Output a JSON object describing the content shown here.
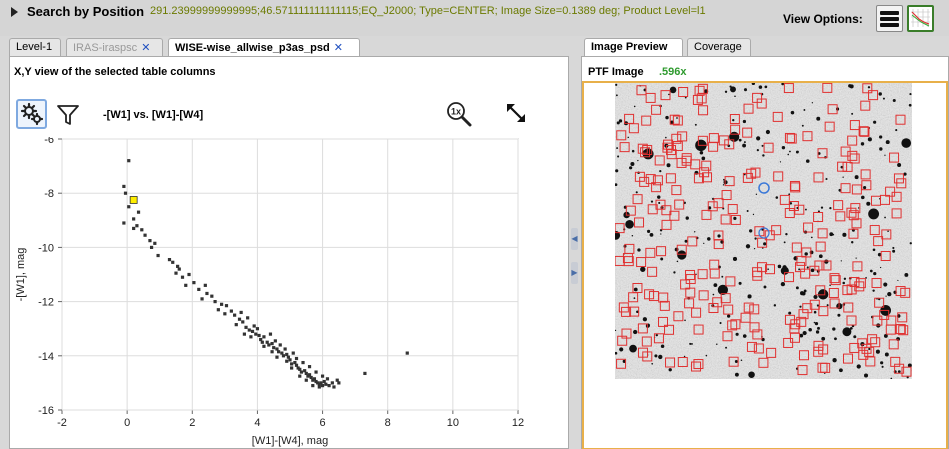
{
  "header": {
    "title": "Search by Position",
    "description": "291.23999999999995;46.571111111111115;EQ_J2000; Type=CENTER; Image Size=0.1389 deg; Product Level=l1",
    "view_options_label": "View Options:"
  },
  "left_tabs": [
    {
      "label": "Level-1",
      "closable": false
    },
    {
      "label": "IRAS-iraspsc",
      "closable": true
    },
    {
      "label": "WISE-wise_allwise_p3as_psd",
      "closable": true
    }
  ],
  "close_glyph": "✕",
  "left_panel": {
    "title": "X,Y view of the selected table columns",
    "plot_title": "-[W1] vs. [W1]-[W4]"
  },
  "right_tabs": [
    {
      "label": "Image Preview"
    },
    {
      "label": "Coverage"
    }
  ],
  "right_panel": {
    "label": "PTF Image",
    "zoom": ".596x"
  },
  "icons": {
    "gear": "gear-icon",
    "filter": "filter-icon",
    "zoom": "zoom-1x-icon",
    "expand": "expand-icon",
    "menu": "menu-icon",
    "grid": "grid-view-icon"
  },
  "colors": {
    "accent_green": "#6b7a00",
    "selected_point": "#ffee00",
    "catalog_marker": "#e03030",
    "image_border": "#e8b04a"
  },
  "chart_data": {
    "type": "scatter",
    "xlabel": "[W1]-[W4], mag",
    "ylabel": "-[W1], mag",
    "xlim": [
      -2,
      12
    ],
    "ylim": [
      -16,
      -6
    ],
    "xticks": [
      -2,
      0,
      2,
      4,
      6,
      8,
      10,
      12
    ],
    "yticks": [
      -6,
      -8,
      -10,
      -12,
      -14,
      -16
    ],
    "grid": true,
    "selected_point": {
      "x": 0.2,
      "y": -8.25
    },
    "points": [
      [
        0.05,
        -6.8
      ],
      [
        -0.1,
        -7.75
      ],
      [
        -0.05,
        -8.0
      ],
      [
        0.15,
        -8.3
      ],
      [
        0.05,
        -8.5
      ],
      [
        0.35,
        -8.7
      ],
      [
        0.2,
        -8.95
      ],
      [
        -0.1,
        -9.1
      ],
      [
        0.3,
        -9.2
      ],
      [
        0.45,
        -9.35
      ],
      [
        0.55,
        -9.55
      ],
      [
        0.7,
        -9.75
      ],
      [
        0.85,
        -9.85
      ],
      [
        0.2,
        -9.3
      ],
      [
        0.75,
        -10.0
      ],
      [
        0.95,
        -10.3
      ],
      [
        1.3,
        -10.45
      ],
      [
        1.4,
        -10.55
      ],
      [
        1.55,
        -10.7
      ],
      [
        1.5,
        -10.95
      ],
      [
        1.7,
        -11.1
      ],
      [
        1.9,
        -11.0
      ],
      [
        2.05,
        -11.3
      ],
      [
        2.2,
        -11.55
      ],
      [
        2.45,
        -11.7
      ],
      [
        2.6,
        -11.8
      ],
      [
        2.7,
        -12.0
      ],
      [
        2.9,
        -12.1
      ],
      [
        3.05,
        -12.15
      ],
      [
        3.2,
        -12.35
      ],
      [
        3.3,
        -12.5
      ],
      [
        3.45,
        -12.65
      ],
      [
        3.55,
        -12.75
      ],
      [
        3.35,
        -12.85
      ],
      [
        3.65,
        -12.95
      ],
      [
        3.75,
        -13.05
      ],
      [
        3.85,
        -13.1
      ],
      [
        3.95,
        -13.2
      ],
      [
        4.05,
        -13.25
      ],
      [
        4.1,
        -13.4
      ],
      [
        4.2,
        -13.3
      ],
      [
        4.3,
        -13.5
      ],
      [
        4.35,
        -13.6
      ],
      [
        4.45,
        -13.55
      ],
      [
        4.5,
        -13.7
      ],
      [
        4.6,
        -13.75
      ],
      [
        4.65,
        -13.85
      ],
      [
        4.75,
        -13.9
      ],
      [
        4.8,
        -14.0
      ],
      [
        4.9,
        -13.95
      ],
      [
        4.95,
        -14.05
      ],
      [
        5.0,
        -14.15
      ],
      [
        5.05,
        -14.3
      ],
      [
        5.15,
        -14.25
      ],
      [
        5.2,
        -14.35
      ],
      [
        5.25,
        -14.45
      ],
      [
        5.3,
        -14.5
      ],
      [
        5.35,
        -14.6
      ],
      [
        5.45,
        -14.55
      ],
      [
        5.5,
        -14.65
      ],
      [
        5.55,
        -14.75
      ],
      [
        5.6,
        -14.7
      ],
      [
        5.65,
        -14.8
      ],
      [
        5.7,
        -14.9
      ],
      [
        5.75,
        -14.85
      ],
      [
        5.8,
        -14.95
      ],
      [
        5.85,
        -15.0
      ],
      [
        5.9,
        -15.05
      ],
      [
        5.95,
        -15.0
      ],
      [
        6.0,
        -15.1
      ],
      [
        6.05,
        -14.95
      ],
      [
        6.1,
        -15.05
      ],
      [
        6.2,
        -15.1
      ],
      [
        6.3,
        -15.0
      ],
      [
        6.45,
        -14.9
      ],
      [
        4.4,
        -13.2
      ],
      [
        4.55,
        -13.45
      ],
      [
        4.7,
        -13.6
      ],
      [
        4.85,
        -13.75
      ],
      [
        5.1,
        -13.9
      ],
      [
        5.2,
        -14.1
      ],
      [
        5.4,
        -14.25
      ],
      [
        5.6,
        -14.4
      ],
      [
        5.8,
        -14.6
      ],
      [
        6.0,
        -14.75
      ],
      [
        4.2,
        -13.65
      ],
      [
        4.45,
        -13.85
      ],
      [
        4.6,
        -14.05
      ],
      [
        4.9,
        -14.2
      ],
      [
        5.05,
        -14.45
      ],
      [
        5.3,
        -14.75
      ],
      [
        5.5,
        -14.9
      ],
      [
        3.9,
        -12.9
      ],
      [
        4.0,
        -13.0
      ],
      [
        3.7,
        -12.6
      ],
      [
        3.5,
        -12.4
      ],
      [
        3.8,
        -13.3
      ],
      [
        4.15,
        -13.5
      ],
      [
        2.4,
        -11.4
      ],
      [
        2.8,
        -12.3
      ],
      [
        3.0,
        -12.45
      ],
      [
        1.6,
        -10.8
      ],
      [
        2.3,
        -11.9
      ],
      [
        3.6,
        -13.2
      ],
      [
        5.9,
        -15.15
      ],
      [
        6.15,
        -14.85
      ],
      [
        5.7,
        -15.1
      ],
      [
        6.35,
        -15.15
      ],
      [
        6.5,
        -15.0
      ],
      [
        7.3,
        -14.65
      ],
      [
        8.6,
        -13.9
      ],
      [
        1.8,
        -11.4
      ]
    ]
  }
}
